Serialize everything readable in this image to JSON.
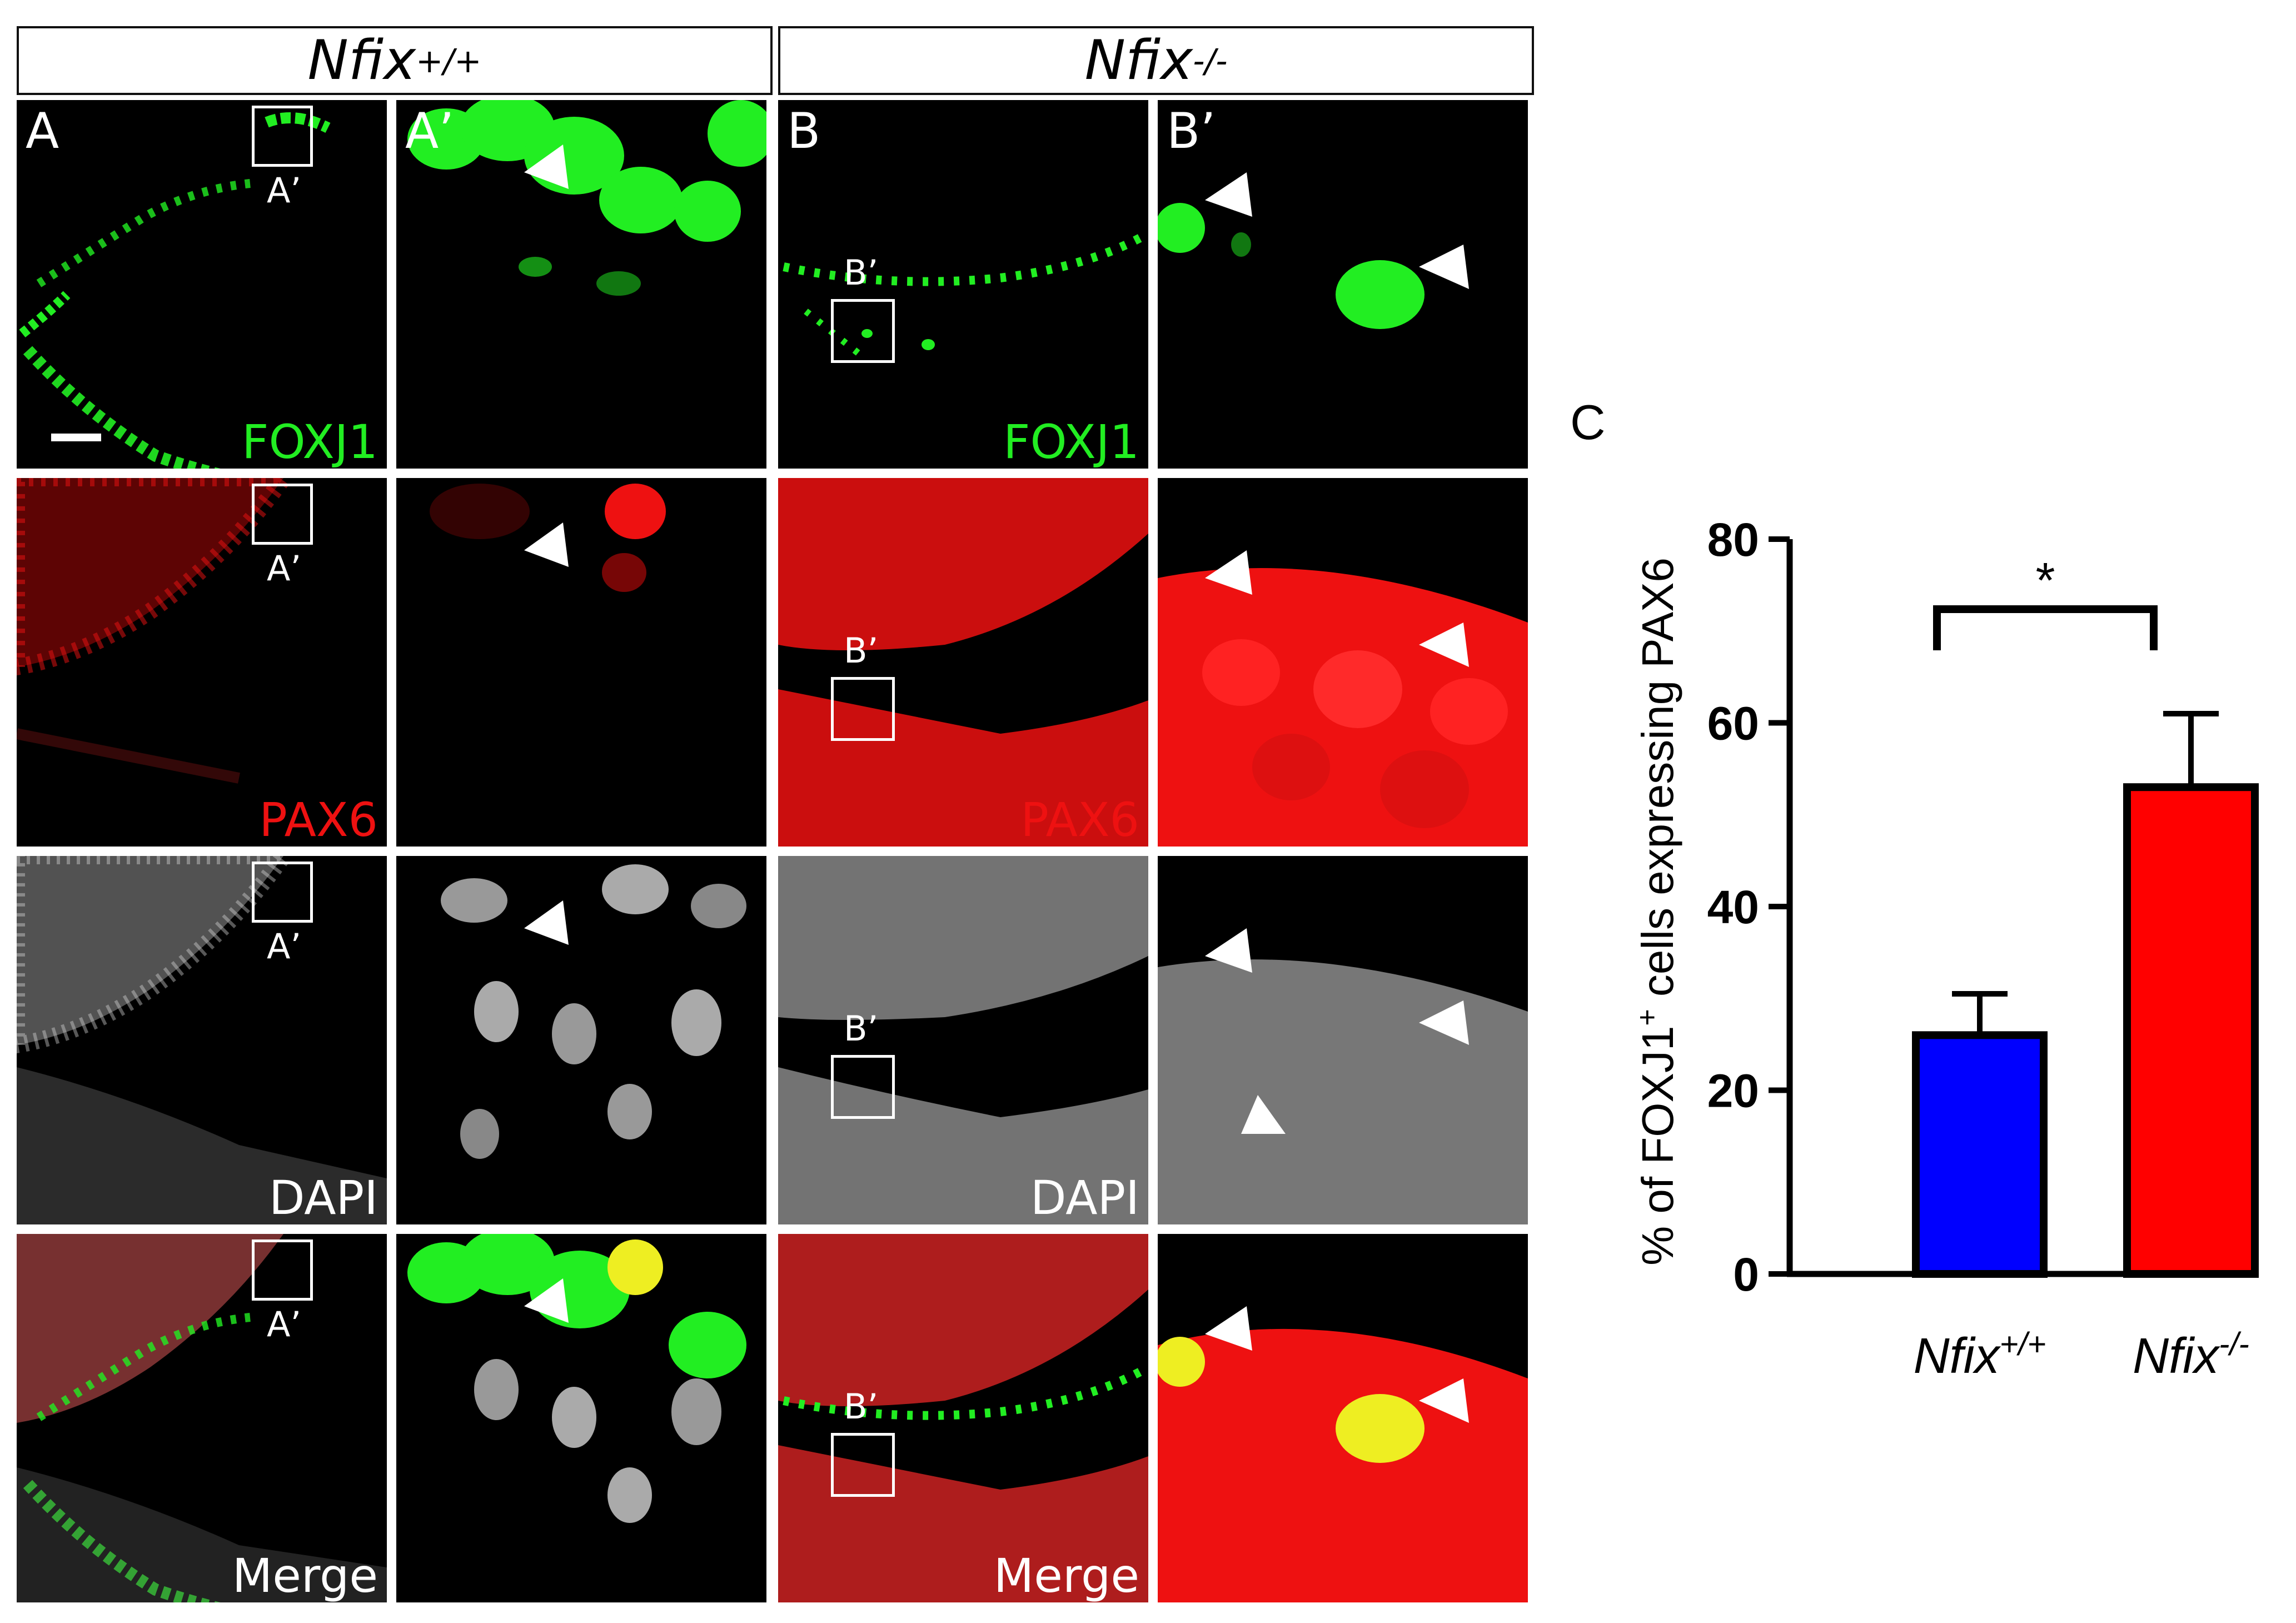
{
  "headers": {
    "wt": {
      "gene": "Nfix",
      "sup": "+/+"
    },
    "ko": {
      "gene": "Nfix",
      "sup": "-/-"
    }
  },
  "panels": {
    "A": "A",
    "A_prime": "A’",
    "B": "B",
    "B_prime": "B’"
  },
  "inset_labels": {
    "A": "A’",
    "B": "B’"
  },
  "channels": {
    "foxj1": "FOXJ1",
    "pax6": "PAX6",
    "dapi": "DAPI",
    "merge": "Merge"
  },
  "colors": {
    "foxj1": "#22ee22",
    "pax6": "#ee1111",
    "dapi": "#dddddd",
    "bar_wt": "#0000ff",
    "bar_ko": "#ff0000"
  },
  "chart_label": "C",
  "chart_data": {
    "type": "bar",
    "categories": [
      {
        "gene": "Nfix",
        "sup": "+/+"
      },
      {
        "gene": "Nfix",
        "sup": "-/-"
      }
    ],
    "values": [
      26,
      53
    ],
    "errors": [
      4.5,
      8
    ],
    "colors": [
      "#0000ff",
      "#ff0000"
    ],
    "ylabel": {
      "pre": "% of FOXJ1",
      "sup": "+",
      "post": " cells expressing PAX6"
    },
    "ylim": [
      0,
      80
    ],
    "yticks": [
      0,
      20,
      40,
      60,
      80
    ],
    "significance": "*"
  }
}
